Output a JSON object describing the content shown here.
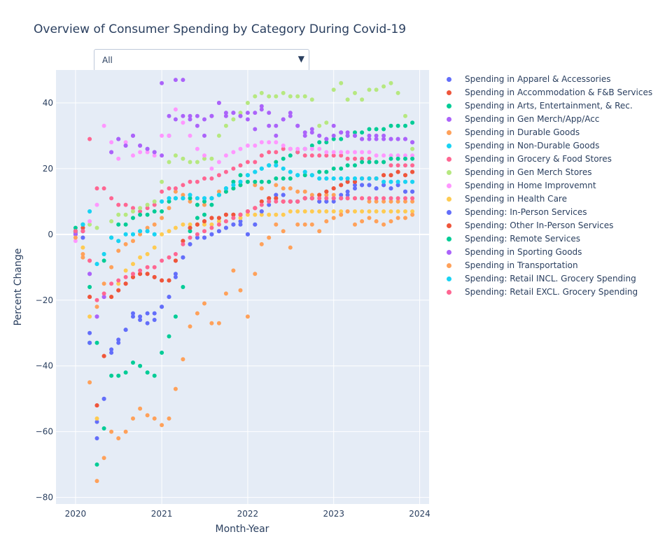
{
  "title": "Overview of Consumer Spending by Category During Covid-19",
  "dropdown": {
    "selected": "All",
    "arrow": "▼"
  },
  "chart_data": {
    "type": "scatter",
    "xlabel": "Month-Year",
    "ylabel": "Percent Change",
    "xlim": [
      "2019-10-10",
      "2024-02-10"
    ],
    "ylim": [
      -82,
      50
    ],
    "x_ticks": [
      {
        "x": "2020-01-01",
        "label": "2020"
      },
      {
        "x": "2021-01-01",
        "label": "2021"
      },
      {
        "x": "2022-01-01",
        "label": "2022"
      },
      {
        "x": "2023-01-01",
        "label": "2023"
      },
      {
        "x": "2024-01-01",
        "label": "2024"
      }
    ],
    "y_ticks": [
      -80,
      -60,
      -40,
      -20,
      0,
      20,
      40
    ],
    "y_tick_labels": [
      "−80",
      "−60",
      "−40",
      "−20",
      "0",
      "20",
      "40"
    ],
    "grid": true,
    "legend_position": "right",
    "x": [
      "2020-01",
      "2020-02",
      "2020-03",
      "2020-04",
      "2020-05",
      "2020-06",
      "2020-07",
      "2020-08",
      "2020-09",
      "2020-10",
      "2020-11",
      "2020-12",
      "2021-01",
      "2021-02",
      "2021-03",
      "2021-04",
      "2021-05",
      "2021-06",
      "2021-07",
      "2021-08",
      "2021-09",
      "2021-10",
      "2021-11",
      "2021-12",
      "2022-01",
      "2022-02",
      "2022-03",
      "2022-04",
      "2022-05",
      "2022-06",
      "2022-07",
      "2022-08",
      "2022-09",
      "2022-10",
      "2022-11",
      "2022-12",
      "2023-01",
      "2023-02",
      "2023-03",
      "2023-04",
      "2023-05",
      "2023-06",
      "2023-07",
      "2023-08",
      "2023-09",
      "2023-10",
      "2023-11",
      "2023-12"
    ],
    "series": [
      {
        "name": "Spending in Apparel & Accessories",
        "color": "#636efa",
        "values": [
          0.5,
          -1,
          -30,
          -57,
          -50,
          -36,
          -33,
          -29,
          -24,
          -25,
          -27,
          -26,
          -22,
          -19,
          -12,
          -7,
          -3,
          -1,
          -1,
          0,
          1,
          2,
          3,
          4,
          0,
          3,
          7,
          10,
          12,
          12,
          10,
          10,
          11,
          11,
          10,
          10,
          11,
          12,
          13,
          15,
          15,
          15,
          14,
          15,
          14,
          15,
          13,
          13
        ]
      },
      {
        "name": "Spending in Accommodation & F&B Services",
        "color": "#EF553B",
        "values": [
          1,
          2,
          -19,
          -52,
          -37,
          -19,
          -17,
          -15,
          -13,
          -12,
          -12,
          -13,
          -14,
          -14,
          -8,
          -2,
          2,
          3,
          4,
          5,
          5,
          6,
          6,
          6,
          7,
          8,
          10,
          11,
          11,
          10,
          10,
          10,
          11,
          11,
          12,
          13,
          14,
          15,
          16,
          16,
          17,
          17,
          17,
          18,
          18,
          19,
          18,
          19
        ]
      },
      {
        "name": "Spending in Arts, Entertainment, & Rec.",
        "color": "#00cc96",
        "values": [
          2,
          3,
          -33,
          -70,
          -59,
          -43,
          -43,
          -42,
          -39,
          -40,
          -42,
          -43,
          -36,
          -31,
          -25,
          -16,
          1,
          5,
          6,
          9,
          12,
          14,
          16,
          18,
          18,
          19,
          20,
          21,
          22,
          23,
          24,
          25,
          26,
          27,
          28,
          28,
          29,
          29,
          30,
          31,
          31,
          32,
          32,
          32,
          33,
          33,
          33,
          34
        ]
      },
      {
        "name": "Spending in Gen Merch/App/Acc",
        "color": "#ab63fa",
        "values": [
          0,
          1,
          -12,
          -25,
          -19,
          25,
          29,
          27,
          30,
          27,
          26,
          25,
          24,
          30,
          35,
          36,
          35,
          33,
          30,
          36,
          40,
          37,
          37,
          36,
          35,
          37,
          39,
          33,
          30,
          35,
          37,
          33,
          30,
          32,
          30,
          29,
          30,
          31,
          31,
          30,
          29,
          30,
          29,
          30,
          29,
          29,
          29,
          28
        ]
      },
      {
        "name": "Spending in Durable Goods",
        "color": "#FFA15A",
        "values": [
          1,
          -6,
          -8,
          -22,
          -15,
          -10,
          -5,
          -3,
          -2,
          0,
          2,
          3,
          5,
          8,
          13,
          12,
          10,
          9,
          9,
          11,
          13,
          13,
          14,
          15,
          16,
          15,
          14,
          16,
          15,
          14,
          14,
          13,
          13,
          12,
          12,
          12,
          12,
          11,
          11,
          11,
          11,
          10,
          10,
          10,
          10,
          10,
          10,
          10
        ]
      },
      {
        "name": "Spending in Non-Durable Goods",
        "color": "#19d3f3",
        "values": [
          1,
          3,
          7,
          -9,
          -6,
          -1,
          -2,
          0,
          0,
          1,
          1,
          0,
          10,
          11,
          11,
          11,
          12,
          11,
          11,
          11,
          12,
          14,
          15,
          16,
          18,
          19,
          20,
          21,
          21,
          20,
          19,
          18,
          19,
          18,
          17,
          17,
          17,
          17,
          17,
          17,
          17,
          17,
          17,
          16,
          16,
          16,
          16,
          16
        ]
      },
      {
        "name": "Spending in Grocery & Food Stores",
        "color": "#FF6692",
        "values": [
          1,
          1,
          29,
          14,
          14,
          11,
          9,
          9,
          8,
          7,
          8,
          9,
          13,
          14,
          14,
          15,
          16,
          16,
          17,
          17,
          18,
          19,
          20,
          21,
          22,
          22,
          24,
          25,
          25,
          26,
          26,
          25,
          24,
          24,
          24,
          24,
          24,
          24,
          23,
          23,
          23,
          23,
          22,
          22,
          21,
          21,
          21,
          21
        ]
      },
      {
        "name": "Spending in Gen Merch Stores",
        "color": "#B6E880",
        "values": [
          1,
          2,
          3,
          2,
          -6,
          4,
          6,
          6,
          7,
          8,
          9,
          10,
          16,
          22,
          24,
          23,
          22,
          22,
          23,
          23,
          30,
          33,
          35,
          37,
          40,
          42,
          43,
          42,
          42,
          43,
          42,
          42,
          42,
          41,
          33,
          34,
          44,
          46,
          41,
          43,
          41,
          44,
          44,
          45,
          46,
          43,
          36,
          26
        ]
      },
      {
        "name": "Spending in Home Improvemnt",
        "color": "#FF97FF",
        "values": [
          -2,
          -1,
          4,
          9,
          33,
          28,
          23,
          28,
          24,
          25,
          25,
          24,
          30,
          30,
          38,
          34,
          30,
          26,
          24,
          20,
          22,
          24,
          25,
          26,
          27,
          27,
          28,
          28,
          28,
          27,
          26,
          26,
          26,
          26,
          26,
          25,
          25,
          25,
          25,
          25,
          25,
          25,
          24,
          24,
          24,
          24,
          24,
          24
        ]
      },
      {
        "name": "Spending in Health Care",
        "color": "#FECB52",
        "values": [
          0,
          -4,
          -25,
          -56,
          -37,
          -19,
          -15,
          -11,
          -9,
          -7,
          -6,
          -4,
          0,
          1,
          2,
          3,
          3,
          3,
          3,
          3,
          4,
          4,
          5,
          5,
          6,
          6,
          6,
          6,
          6,
          6,
          7,
          7,
          7,
          7,
          7,
          7,
          7,
          7,
          7,
          7,
          7,
          7,
          7,
          7,
          7,
          7,
          7,
          7
        ]
      },
      {
        "name": "Spending: In-Person Services",
        "color": "#636efa",
        "values": [
          0,
          -1,
          -33,
          -62,
          -50,
          -35,
          -32,
          -29,
          -25,
          -26,
          -24,
          -24,
          -22,
          -19,
          -13,
          -7,
          -3,
          -1,
          -1,
          0,
          1,
          2,
          3,
          3,
          0,
          3,
          7,
          9,
          12,
          12,
          10,
          10,
          11,
          11,
          10,
          10,
          10,
          11,
          12,
          14,
          15,
          15,
          14,
          15,
          14,
          15,
          13,
          13
        ]
      },
      {
        "name": "Spending: Other In-Person Services",
        "color": "#EF553B",
        "values": [
          1,
          2,
          -19,
          -52,
          -37,
          -19,
          -17,
          -15,
          -13,
          -12,
          -12,
          -13,
          -14,
          -14,
          -8,
          -2,
          2,
          3,
          4,
          5,
          5,
          6,
          6,
          6,
          7,
          8,
          10,
          11,
          11,
          10,
          10,
          10,
          11,
          11,
          12,
          13,
          14,
          15,
          16,
          16,
          17,
          17,
          17,
          18,
          18,
          19,
          18,
          19
        ]
      },
      {
        "name": "Spending: Remote Services",
        "color": "#00cc96",
        "values": [
          1,
          3,
          -16,
          -33,
          -8,
          -1,
          3,
          3,
          5,
          6,
          6,
          7,
          7,
          10,
          11,
          11,
          11,
          9,
          10,
          11,
          12,
          13,
          14,
          15,
          16,
          16,
          16,
          16,
          17,
          17,
          17,
          18,
          18,
          18,
          19,
          19,
          20,
          20,
          21,
          21,
          22,
          22,
          22,
          22,
          23,
          23,
          23,
          23
        ]
      },
      {
        "name": "Spending in Sporting Goods",
        "color": "#ab63fa",
        "values": [
          0,
          1,
          -12,
          -25,
          -19,
          25,
          29,
          27,
          30,
          27,
          26,
          25,
          46,
          36,
          47,
          47,
          36,
          36,
          35,
          36,
          40,
          36,
          37,
          36,
          37,
          32,
          38,
          37,
          33,
          35,
          36,
          33,
          31,
          31,
          30,
          29,
          33,
          31,
          30,
          30,
          29,
          29,
          30,
          29,
          29,
          29,
          29,
          28
        ]
      },
      {
        "name": "Spending in Transportation",
        "color": "#FFA15A",
        "values": [
          -1,
          -7,
          -45,
          -75,
          -68,
          -60,
          -62,
          -60,
          -56,
          -53,
          -55,
          -56,
          -58,
          -56,
          -47,
          -38,
          -28,
          -24,
          -21,
          -27,
          -27,
          -18,
          -11,
          -17,
          -25,
          -12,
          -3,
          -1,
          3,
          1,
          -4,
          3,
          3,
          3,
          1,
          4,
          5,
          6,
          7,
          3,
          4,
          5,
          4,
          3,
          4,
          5,
          5,
          6
        ]
      },
      {
        "name": "Spending: Retail INCL. Grocery Spending",
        "color": "#19d3f3",
        "values": [
          1,
          3,
          7,
          -9,
          -6,
          -1,
          -2,
          0,
          0,
          1,
          1,
          0,
          10,
          11,
          11,
          11,
          12,
          11,
          11,
          11,
          12,
          14,
          15,
          16,
          18,
          19,
          20,
          21,
          21,
          20,
          19,
          18,
          19,
          18,
          17,
          17,
          17,
          17,
          17,
          17,
          17,
          17,
          17,
          16,
          16,
          16,
          16,
          16
        ]
      },
      {
        "name": "Spending: Retail EXCL. Grocery Spending",
        "color": "#FF6692",
        "values": [
          1,
          1,
          -8,
          -20,
          -18,
          -15,
          -14,
          -13,
          -12,
          -11,
          -10,
          -10,
          -8,
          -7,
          -6,
          -3,
          -1,
          0,
          1,
          2,
          3,
          4,
          5,
          6,
          7,
          8,
          9,
          10,
          10,
          10,
          10,
          10,
          11,
          11,
          11,
          11,
          11,
          11,
          11,
          11,
          11,
          11,
          11,
          11,
          11,
          11,
          11,
          11
        ]
      }
    ]
  }
}
